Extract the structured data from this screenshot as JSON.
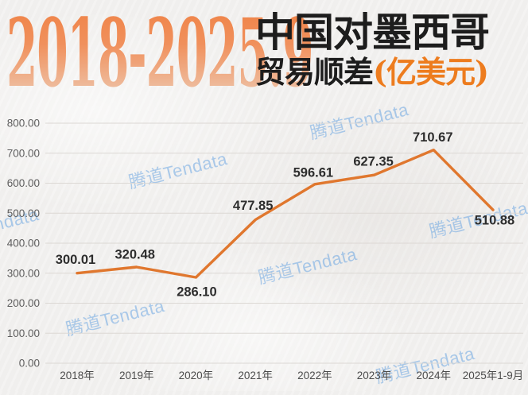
{
  "header": {
    "period": "2018-2025.9",
    "title_line1": "中国对墨西哥",
    "title_line2": "贸易顺差",
    "unit": "(亿美元)"
  },
  "watermark": {
    "text": "腾道Tendata"
  },
  "colors": {
    "line": "#e0772e",
    "value_label": "#2d2d2d",
    "axis_text": "#5e5e5e",
    "x_axis_text": "#4c4c4c",
    "gridline": "#dcd8d4",
    "title_orange": "#ed7c1e",
    "watermark_blue": "#6ca5e2"
  },
  "chart_data": {
    "type": "line",
    "title": "2018-2025.9 中国对墨西哥贸易顺差",
    "unit": "亿美元",
    "categories": [
      "2018年",
      "2019年",
      "2020年",
      "2021年",
      "2022年",
      "2023年",
      "2024年",
      "2025年1-9月"
    ],
    "values": [
      300.01,
      320.48,
      286.1,
      477.85,
      596.61,
      627.35,
      710.67,
      510.88
    ],
    "value_labels": [
      "300.01",
      "320.48",
      "286.10",
      "477.85",
      "596.61",
      "627.35",
      "710.67",
      "510.88"
    ],
    "ylim": [
      0,
      800
    ],
    "ytick_step": 100,
    "ytick_labels": [
      "0.00",
      "100.00",
      "200.00",
      "300.00",
      "400.00",
      "500.00",
      "600.00",
      "700.00",
      "800.00"
    ],
    "grid": true,
    "legend": "none",
    "xlabel": "",
    "ylabel": ""
  }
}
